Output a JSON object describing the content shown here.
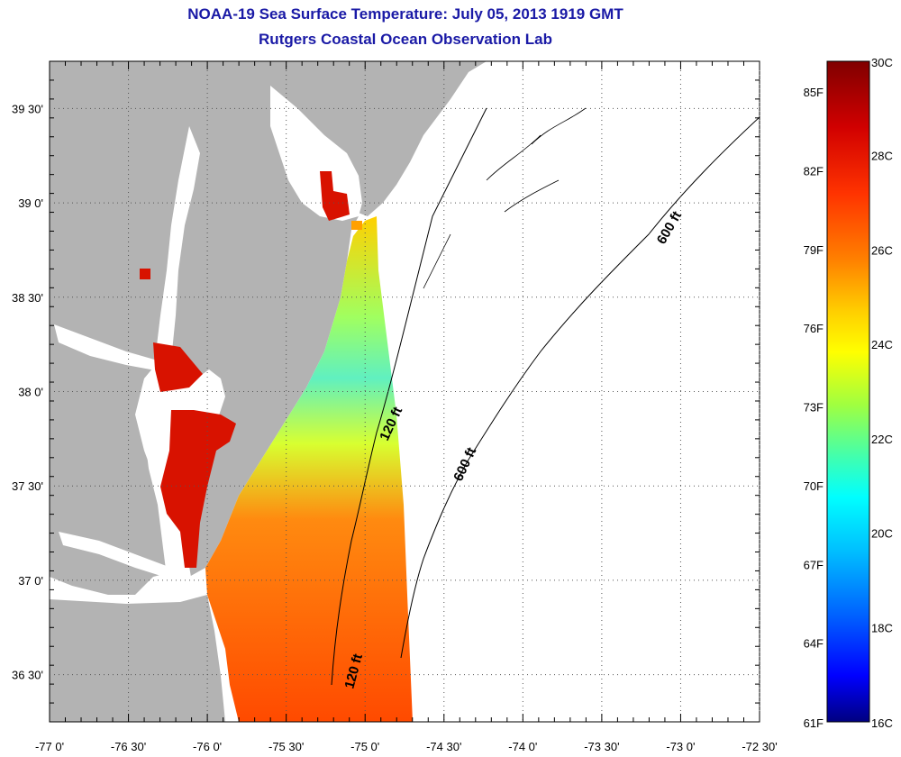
{
  "title": "NOAA-19 Sea Surface Temperature:  July 05, 2013 1919 GMT",
  "subtitle": "Rutgers Coastal Ocean Observation Lab",
  "map": {
    "lon_range": [
      -77.0,
      -72.5
    ],
    "lat_range": [
      36.25,
      39.75
    ],
    "lon_ticks": [
      {
        "value": -77.0,
        "label": "-77 0'"
      },
      {
        "value": -76.5,
        "label": "-76 30'"
      },
      {
        "value": -76.0,
        "label": "-76 0'"
      },
      {
        "value": -75.5,
        "label": "-75 30'"
      },
      {
        "value": -75.0,
        "label": "-75 0'"
      },
      {
        "value": -74.5,
        "label": "-74 30'"
      },
      {
        "value": -74.0,
        "label": "-74 0'"
      },
      {
        "value": -73.5,
        "label": "-73 30'"
      },
      {
        "value": -73.0,
        "label": "-73 0'"
      },
      {
        "value": -72.5,
        "label": "-72 30'"
      }
    ],
    "lat_ticks": [
      {
        "value": 39.5,
        "label": "39 30'"
      },
      {
        "value": 39.0,
        "label": "39 0'"
      },
      {
        "value": 38.5,
        "label": "38 30'"
      },
      {
        "value": 38.0,
        "label": "38 0'"
      },
      {
        "value": 37.5,
        "label": "37 30'"
      },
      {
        "value": 37.0,
        "label": "37 0'"
      },
      {
        "value": 36.5,
        "label": "36 30'"
      }
    ],
    "contour_labels": [
      "120 ft",
      "600 ft",
      "600 ft",
      "120 ft"
    ],
    "colors": {
      "land": "#b3b3b3",
      "water_nodata": "#ffffff",
      "grid": "#555555"
    }
  },
  "colorbar": {
    "celsius_labels": [
      "30C",
      "28C",
      "26C",
      "24C",
      "22C",
      "20C",
      "18C",
      "16C"
    ],
    "fahrenheit_labels": [
      "85F",
      "82F",
      "79F",
      "76F",
      "73F",
      "70F",
      "67F",
      "64F",
      "61F"
    ],
    "stops": [
      "#800000",
      "#d10000",
      "#ff3300",
      "#ff8000",
      "#ffd000",
      "#ffff00",
      "#a0ff40",
      "#40ffb0",
      "#00ffff",
      "#00c0ff",
      "#0060ff",
      "#0000ff",
      "#000080"
    ]
  }
}
